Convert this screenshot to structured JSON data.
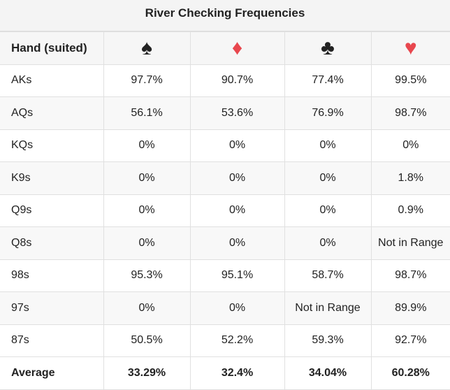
{
  "title": "River Checking Frequencies",
  "table": {
    "header": [
      "Hand (suited)",
      "♠",
      "♦",
      "♣",
      "♥"
    ],
    "rows": [
      [
        "AKs",
        "97.7%",
        "90.7%",
        "77.4%",
        "99.5%"
      ],
      [
        "AQs",
        "56.1%",
        "53.6%",
        "76.9%",
        "98.7%"
      ],
      [
        "KQs",
        "0%",
        "0%",
        "0%",
        "0%"
      ],
      [
        "K9s",
        "0%",
        "0%",
        "0%",
        "1.8%"
      ],
      [
        "Q9s",
        "0%",
        "0%",
        "0%",
        "0.9%"
      ],
      [
        "Q8s",
        "0%",
        "0%",
        "0%",
        "Not in Range"
      ],
      [
        "98s",
        "95.3%",
        "95.1%",
        "58.7%",
        "98.7%"
      ],
      [
        "97s",
        "0%",
        "0%",
        "Not in Range",
        "89.9%"
      ],
      [
        "87s",
        "50.5%",
        "52.2%",
        "59.3%",
        "92.7%"
      ]
    ],
    "footer": [
      "Average",
      "33.29%",
      "32.4%",
      "34.04%",
      "60.28%"
    ]
  }
}
